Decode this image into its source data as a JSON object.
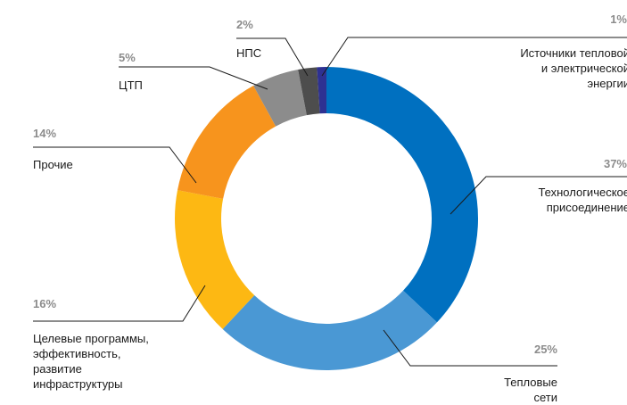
{
  "chart_data": {
    "type": "donut",
    "categories": [
      "Технологическое\nприсоединение",
      "Тепловые\nсети",
      "Целевые программы,\nэффективность,\nразвитие\nинфраструктуры",
      "Прочие",
      "ЦТП",
      "НПС",
      "Источники тепловой\nи электрической\nэнергии"
    ],
    "values": [
      37,
      25,
      16,
      14,
      5,
      2,
      1
    ],
    "value_labels": [
      "37%",
      "25%",
      "16%",
      "14%",
      "5%",
      "2%",
      "1%"
    ],
    "colors": [
      "#0070c0",
      "#4a98d4",
      "#fdb813",
      "#f7941d",
      "#8c8c8c",
      "#4d4d4d",
      "#2e3192"
    ]
  }
}
